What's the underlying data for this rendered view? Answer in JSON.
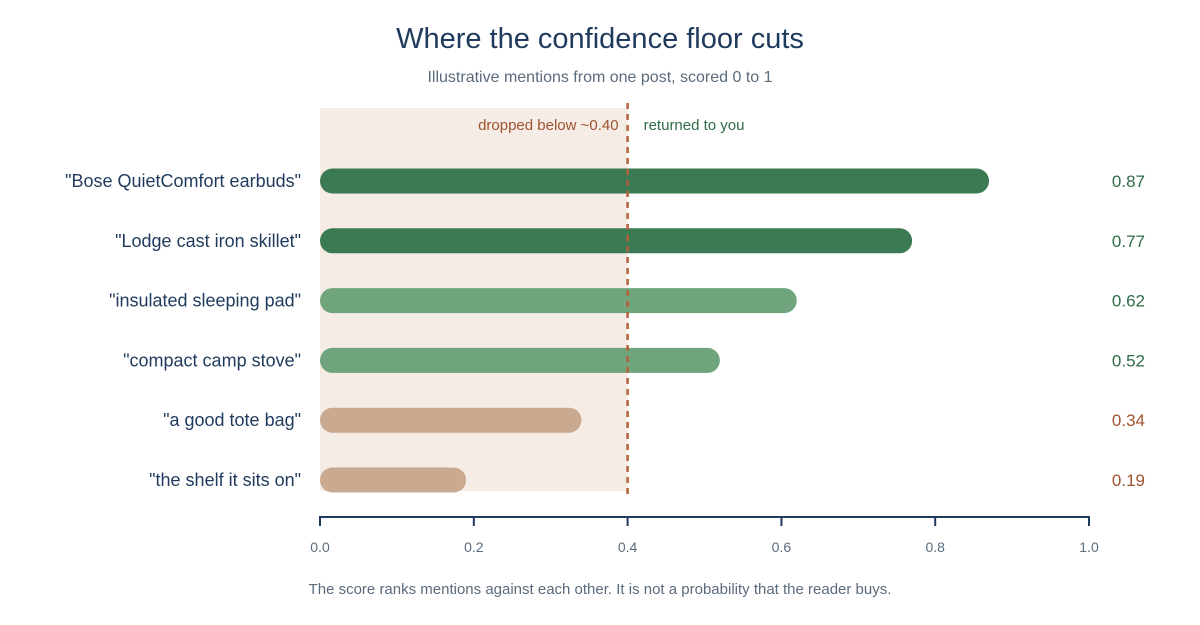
{
  "colors": {
    "strong": "#3b7a52",
    "medium": "#6fa47c",
    "below": "#c9a990",
    "below_text": "#a0532e",
    "above_text": "#2f6b45",
    "threshold_line": "#b5613a",
    "zone_fill": "#f5ece6",
    "axis": "#1f3a5c"
  },
  "chart_data": {
    "type": "bar",
    "orientation": "horizontal",
    "title": "Where the confidence floor cuts",
    "subtitle": "Illustrative mentions from one post, scored 0 to 1",
    "categories": [
      "\"Bose QuietComfort earbuds\"",
      "\"Lodge cast iron skillet\"",
      "\"insulated sleeping pad\"",
      "\"compact camp stove\"",
      "\"a good tote bag\"",
      "\"the shelf it sits on\""
    ],
    "values": [
      0.87,
      0.77,
      0.62,
      0.52,
      0.34,
      0.19
    ],
    "value_labels": [
      "0.87",
      "0.77",
      "0.62",
      "0.52",
      "0.34",
      "0.19"
    ],
    "xlim": [
      0,
      1
    ],
    "x_ticks": [
      0,
      0.2,
      0.4,
      0.6,
      0.8,
      1
    ],
    "x_tick_labels": [
      "0.0",
      "0.2",
      "0.4",
      "0.6",
      "0.8",
      "1.0"
    ],
    "threshold": 0.4,
    "threshold_left_label": "dropped below ~0.40",
    "threshold_right_label": "returned to you",
    "footnote": "The score ranks mentions against each other. It is not a probability that the reader buys.",
    "grid": false,
    "legend": "none"
  }
}
